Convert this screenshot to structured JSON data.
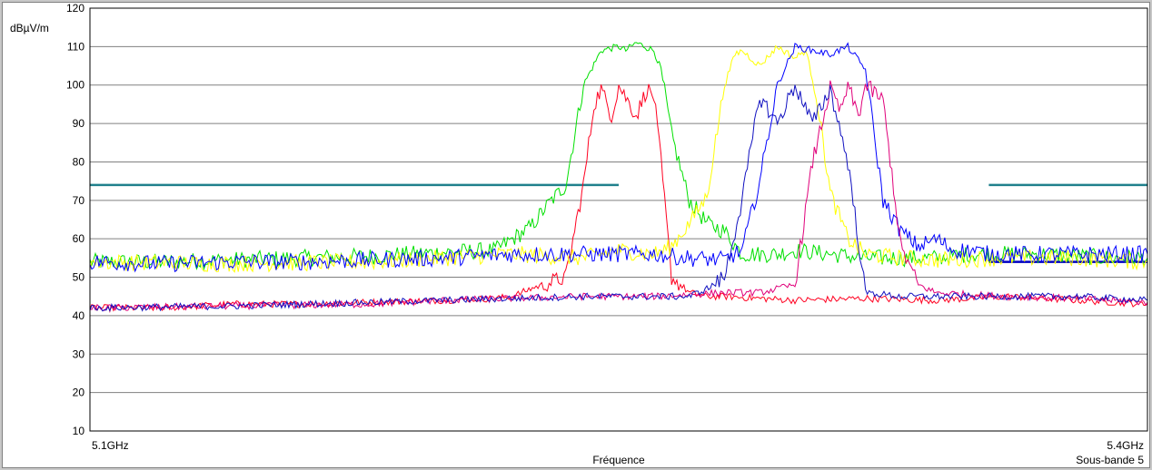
{
  "chart_data": {
    "type": "line",
    "unit_label": "dBµV/m",
    "xlabel": "Fréquence",
    "x_start_label": "5.1GHz",
    "x_end_label": "5.4GHz",
    "band_label": "Sous-bande 5",
    "xlim": [
      5.1,
      5.4
    ],
    "ylim": [
      10,
      120
    ],
    "yticks": [
      "10",
      "20",
      "30",
      "40",
      "50",
      "60",
      "70",
      "80",
      "90",
      "100",
      "110",
      "120"
    ],
    "grid": true,
    "series": [
      {
        "color": "#00e000",
        "x": [
          5.1,
          5.12,
          5.14,
          5.16,
          5.18,
          5.2,
          5.215,
          5.22,
          5.225,
          5.23,
          5.235,
          5.24,
          5.245,
          5.25,
          5.252,
          5.255,
          5.26,
          5.262,
          5.265,
          5.27,
          5.275,
          5.28,
          5.285,
          5.29,
          5.295,
          5.3,
          5.31,
          5.32,
          5.33,
          5.34,
          5.35,
          5.36,
          5.37,
          5.38,
          5.39,
          5.4
        ],
        "y": [
          54,
          54,
          54.5,
          55,
          55.5,
          56.5,
          57,
          60,
          63,
          69,
          74,
          100,
          109,
          110,
          109,
          111,
          109,
          104,
          87,
          70,
          64,
          62,
          56,
          56,
          56,
          57,
          56,
          55,
          55,
          55,
          56,
          56,
          56,
          55.5,
          55,
          55
        ]
      },
      {
        "color": "#ff0020",
        "x": [
          5.1,
          5.12,
          5.14,
          5.16,
          5.18,
          5.2,
          5.215,
          5.22,
          5.225,
          5.235,
          5.24,
          5.243,
          5.245,
          5.248,
          5.25,
          5.255,
          5.258,
          5.26,
          5.262,
          5.265,
          5.27,
          5.275,
          5.28,
          5.3,
          5.32,
          5.34,
          5.36,
          5.38,
          5.4
        ],
        "y": [
          42,
          42,
          43,
          43,
          43.5,
          44,
          44.5,
          45,
          47,
          50,
          74,
          95,
          99,
          92,
          100,
          92,
          99,
          97,
          80,
          50,
          46,
          45,
          45,
          44,
          44.5,
          44,
          45,
          44,
          43
        ]
      },
      {
        "color": "#ffff00",
        "x": [
          5.1,
          5.14,
          5.18,
          5.2,
          5.22,
          5.24,
          5.25,
          5.26,
          5.265,
          5.27,
          5.275,
          5.28,
          5.283,
          5.285,
          5.29,
          5.295,
          5.3,
          5.303,
          5.306,
          5.31,
          5.315,
          5.32,
          5.33,
          5.34,
          5.36,
          5.38,
          5.4
        ],
        "y": [
          54,
          53.5,
          54,
          55,
          56,
          55,
          57,
          56,
          58,
          64,
          71,
          100,
          108,
          109,
          105,
          110,
          107,
          109,
          98,
          72,
          60,
          56,
          55,
          54.5,
          55,
          55,
          54
        ]
      },
      {
        "color": "#0000ff",
        "x": [
          5.1,
          5.12,
          5.14,
          5.16,
          5.18,
          5.2,
          5.22,
          5.24,
          5.26,
          5.27,
          5.28,
          5.285,
          5.29,
          5.295,
          5.3,
          5.305,
          5.31,
          5.315,
          5.32,
          5.325,
          5.33,
          5.335,
          5.34,
          5.345,
          5.35,
          5.355,
          5.36,
          5.37,
          5.38,
          5.39,
          5.4
        ],
        "y": [
          54,
          53.5,
          54,
          54,
          54.5,
          55,
          56,
          56,
          56,
          55,
          54.5,
          57,
          75,
          100,
          110,
          109,
          108,
          110,
          104,
          70,
          62,
          58,
          60,
          57,
          57,
          56,
          56,
          56,
          56,
          56,
          56
        ]
      },
      {
        "color": "#e0007a",
        "x": [
          5.1,
          5.14,
          5.18,
          5.2,
          5.22,
          5.24,
          5.26,
          5.27,
          5.28,
          5.29,
          5.3,
          5.305,
          5.31,
          5.313,
          5.315,
          5.318,
          5.32,
          5.325,
          5.33,
          5.335,
          5.34,
          5.36,
          5.38,
          5.4
        ],
        "y": [
          42,
          42.5,
          43,
          44,
          44.5,
          45,
          45,
          45.5,
          46,
          46,
          48,
          80,
          99,
          93,
          100,
          92,
          100,
          96,
          58,
          48,
          46,
          45,
          44.5,
          43.5
        ]
      },
      {
        "color": "#1010c0",
        "x": [
          5.1,
          5.14,
          5.18,
          5.2,
          5.22,
          5.24,
          5.26,
          5.27,
          5.275,
          5.28,
          5.285,
          5.29,
          5.295,
          5.3,
          5.305,
          5.31,
          5.315,
          5.32,
          5.33,
          5.34,
          5.36,
          5.38,
          5.4
        ],
        "y": [
          42,
          42.5,
          43.5,
          44,
          44.5,
          45,
          45,
          45,
          47,
          50,
          70,
          97,
          90,
          100,
          90,
          99,
          80,
          46,
          45,
          45,
          45,
          45,
          44
        ]
      }
    ],
    "limit_lines": [
      {
        "color": "#20808c",
        "x": [
          5.1,
          5.25
        ],
        "y": 74
      },
      {
        "color": "#20808c",
        "x": [
          5.355,
          5.4
        ],
        "y": 74
      },
      {
        "color": "#0000c0",
        "x": [
          5.355,
          5.4
        ],
        "y": 54
      }
    ]
  }
}
